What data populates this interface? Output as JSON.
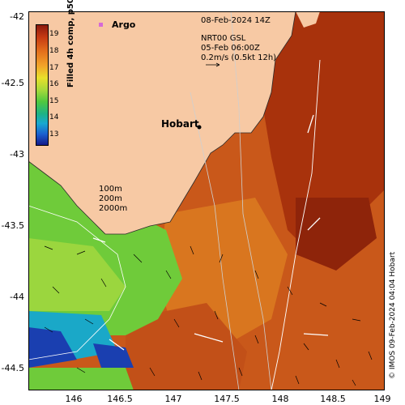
{
  "map": {
    "date_label": "08-Feb-2024 14Z",
    "current_source": "NRT00 GSL",
    "current_time": "05-Feb 06:00Z",
    "current_scale": "0.2m/s (0.5kt 12h)",
    "argo_label": "Argo",
    "city_label": "Hobart",
    "depth_contours": [
      "100m",
      "200m",
      "2000m"
    ],
    "credit": "© IMOS 09-Feb-2024 04:04 Hobart",
    "x_ticks": [
      "146",
      "146.5",
      "147",
      "147.5",
      "148",
      "148.5",
      "149"
    ],
    "y_ticks": [
      "-42",
      "-42.5",
      "-43",
      "-43.5",
      "-44",
      "-44.5"
    ],
    "longitude_range": [
      145.7,
      149
    ],
    "latitude_range": [
      -44.65,
      -42
    ]
  },
  "colorbar": {
    "title": "Filled 4h comp, p50, All Sats",
    "labels": [
      "19",
      "18",
      "17",
      "16",
      "15",
      "14",
      "13"
    ],
    "colors": [
      "#8b1a0e",
      "#c63a12",
      "#e4701c",
      "#f2a42a",
      "#e9e02a",
      "#a7d93a",
      "#4fc83f",
      "#1db386",
      "#19a9d0",
      "#1a5fd0",
      "#141a8a"
    ]
  },
  "colors": {
    "land": "#f7c9a4",
    "warm_water": "#b8420f",
    "hot_water": "#9a2a0a",
    "mid_water": "#d8731f",
    "cool_water": "#7bd43a",
    "cold_water": "#1aa8c8",
    "coldest_water": "#1a3fb0"
  }
}
